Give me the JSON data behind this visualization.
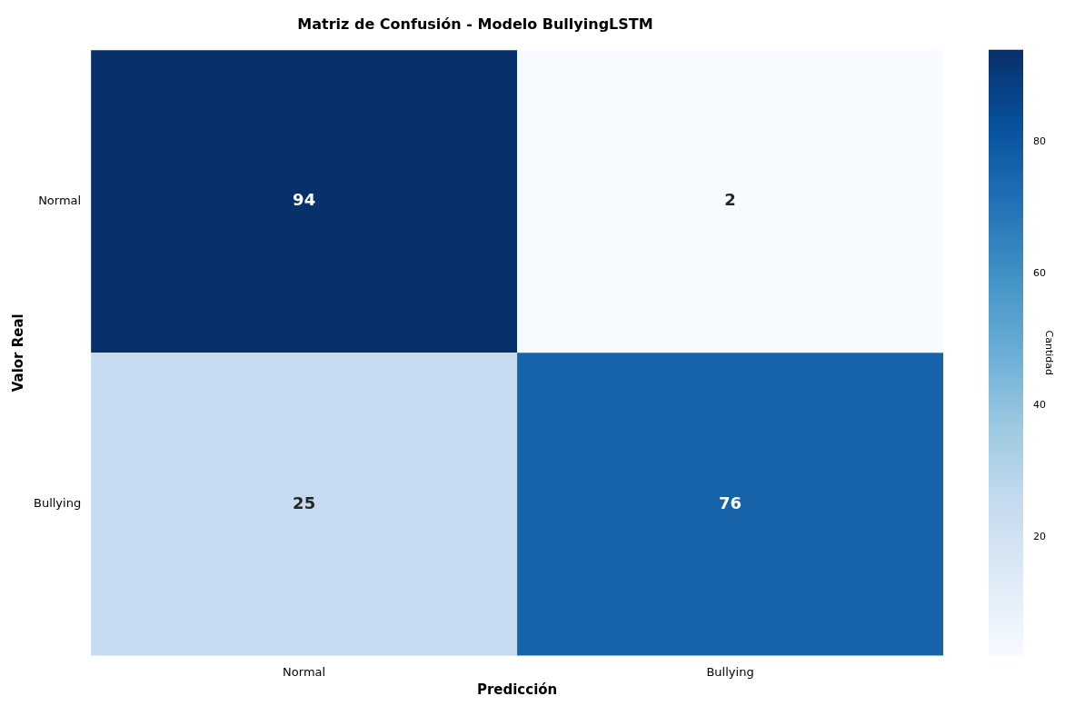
{
  "chart_data": {
    "type": "heatmap",
    "title": "Matriz de Confusión - Modelo BullyingLSTM",
    "xlabel": "Predicción",
    "ylabel": "Valor Real",
    "clabel": "Cantidad",
    "categories": [
      "Normal",
      "Bullying"
    ],
    "y_categories": [
      "Normal",
      "Bullying"
    ],
    "cells": [
      [
        94,
        2
      ],
      [
        25,
        76
      ]
    ],
    "clim": [
      2,
      94
    ],
    "cticks": [
      20,
      40,
      60,
      80
    ],
    "data_labels": true
  }
}
